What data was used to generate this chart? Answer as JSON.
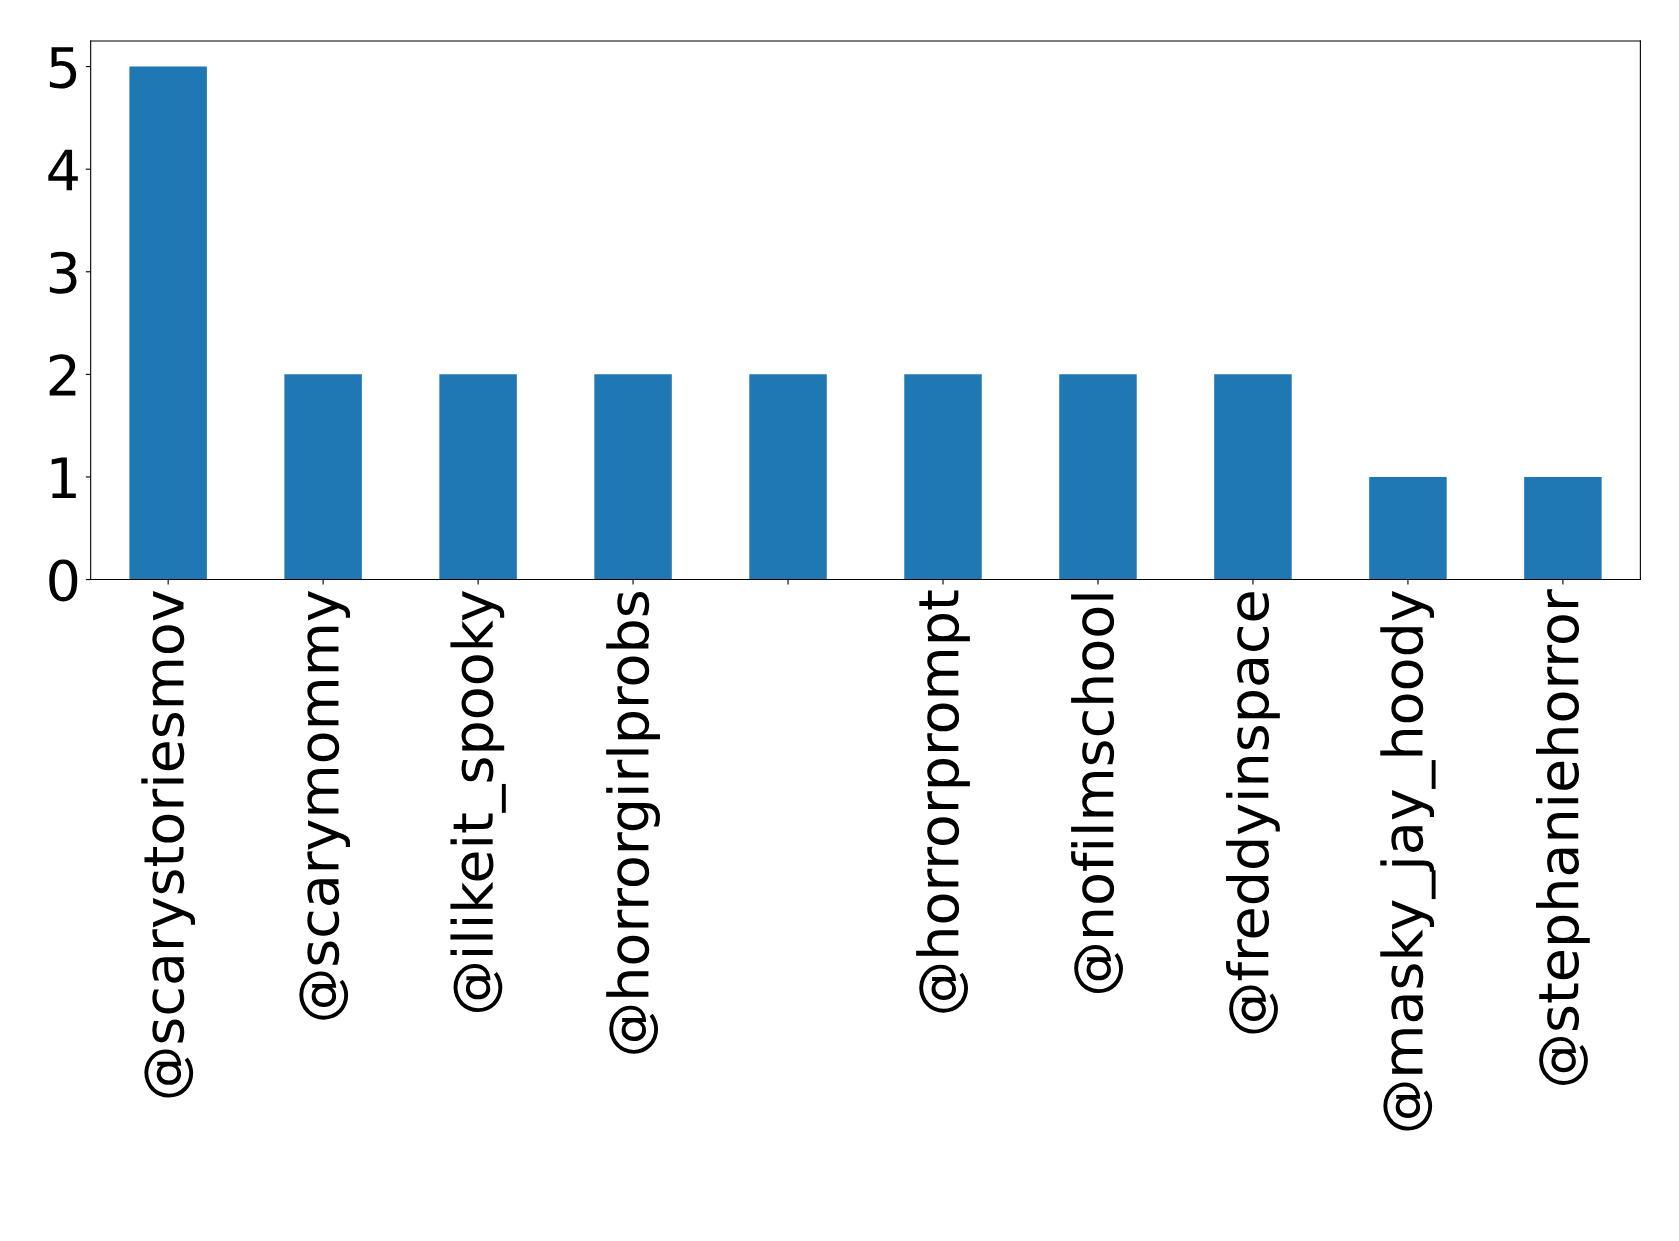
{
  "chart_data": {
    "type": "bar",
    "categories": [
      "@scarystoriesmov",
      "@scarymommy",
      "@ilikeit_spooky",
      "@horrorgirlprobs",
      null,
      "@horrorprompt",
      "@nofilmschool",
      "@freddyinspace",
      "@masky_jay_hoody",
      "@stephaniehorror"
    ],
    "values": [
      5,
      2,
      2,
      2,
      2,
      2,
      2,
      2,
      1,
      1
    ],
    "color": "#1f77b4",
    "ylim": [
      0,
      5.25
    ],
    "yticks": [
      0,
      1,
      2,
      3,
      4,
      5
    ],
    "grid": false,
    "legend": false
  }
}
